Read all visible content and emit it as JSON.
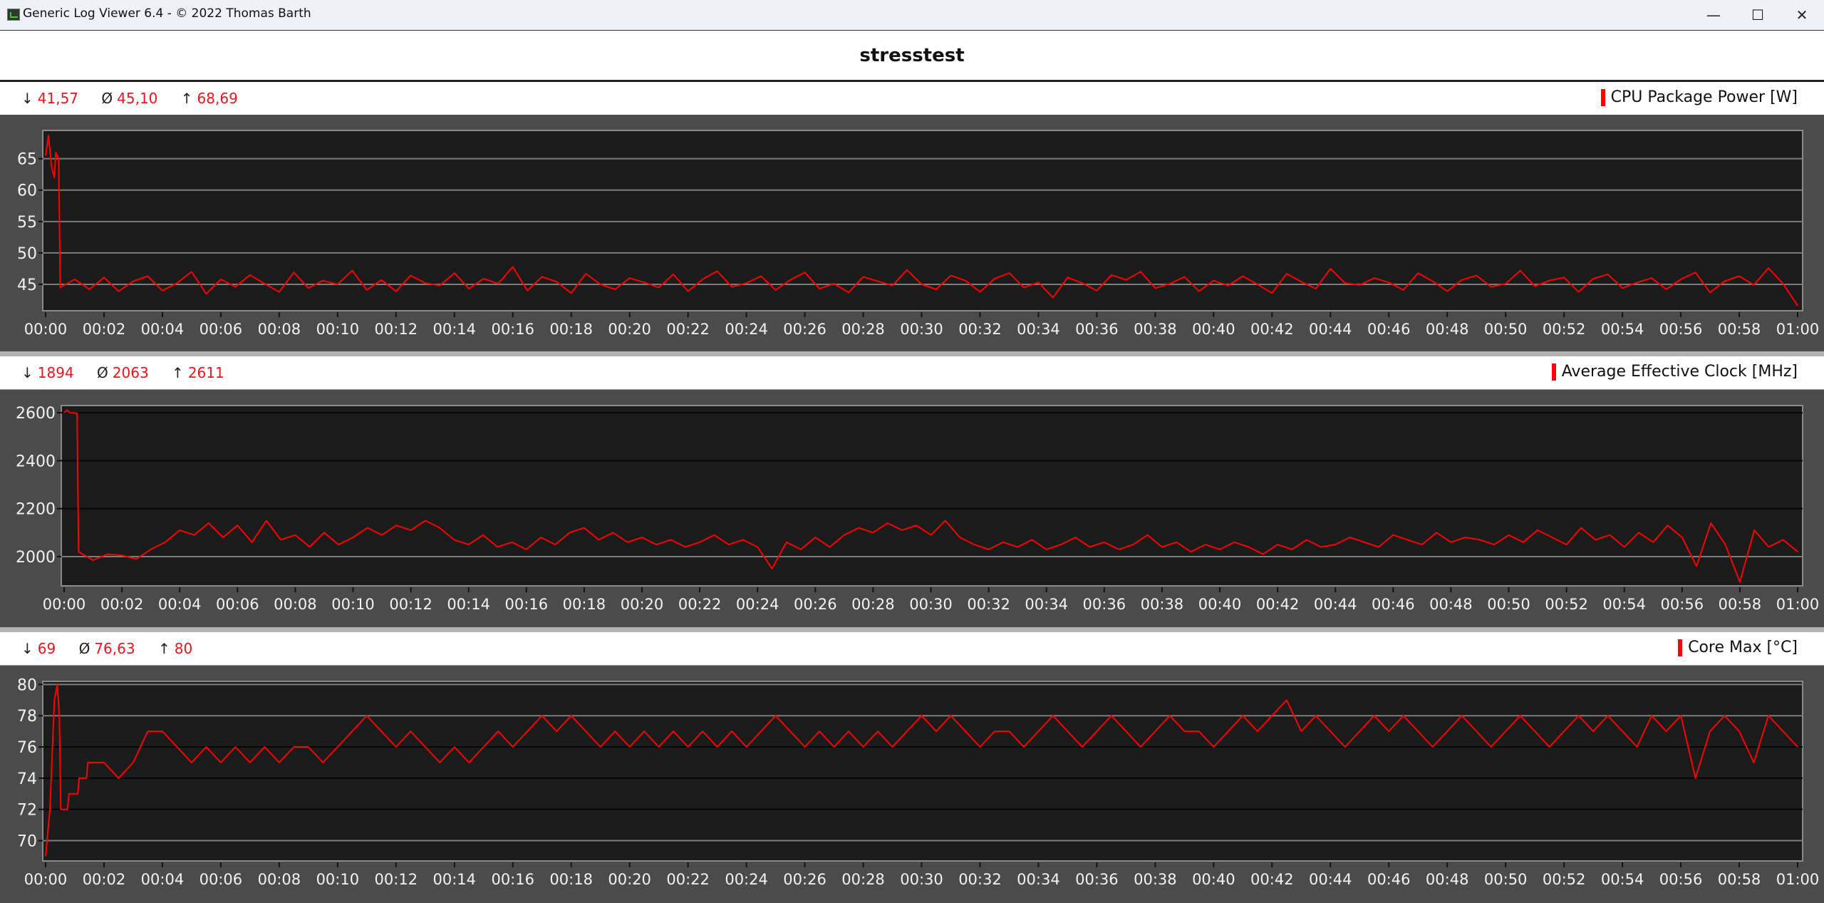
{
  "window": {
    "title": "Generic Log Viewer 6.4 - © 2022 Thomas Barth",
    "minimize_icon": "minimize-icon",
    "maximize_icon": "maximize-icon",
    "close_icon": "close-icon",
    "minimize": "—",
    "maximize": "☐",
    "close": "✕"
  },
  "page_title": "stresstest",
  "stat_symbols": {
    "min": "↓",
    "avg": "Ø",
    "max": "↑"
  },
  "panels": [
    {
      "legend": "CPU Package Power [W]",
      "min": "41,57",
      "avg": "45,10",
      "max": "68,69"
    },
    {
      "legend": "Average Effective Clock [MHz]",
      "min": "1894",
      "avg": "2063",
      "max": "2611"
    },
    {
      "legend": "Core Max [°C]",
      "min": "69",
      "avg": "76,63",
      "max": "80"
    }
  ],
  "chart_data": [
    {
      "type": "line",
      "series_color": "#ff0000",
      "x_tick_labels": [
        "00:00",
        "00:02",
        "00:04",
        "00:06",
        "00:08",
        "00:10",
        "00:12",
        "00:14",
        "00:16",
        "00:18",
        "00:20",
        "00:22",
        "00:24",
        "00:26",
        "00:28",
        "00:30",
        "00:32",
        "00:34",
        "00:36",
        "00:38",
        "00:40",
        "00:42",
        "00:44",
        "00:46",
        "00:48",
        "00:50",
        "00:52",
        "00:54",
        "00:56",
        "00:58",
        "01:00"
      ],
      "xlim": [
        0,
        60
      ],
      "y_ticks": [
        45,
        50,
        55,
        60,
        65
      ],
      "ylim": [
        40.8,
        69.5
      ],
      "grid": true,
      "prefix": [
        [
          0,
          65.5
        ],
        [
          0.1,
          68.7
        ],
        [
          0.2,
          63.8
        ],
        [
          0.3,
          62
        ],
        [
          0.35,
          66
        ],
        [
          0.45,
          65
        ]
      ],
      "x_start": 0.5,
      "x_step": 0.5,
      "values": [
        44.5,
        45.8,
        44.2,
        46.1,
        43.9,
        45.5,
        46.3,
        44.0,
        45.2,
        47.0,
        43.5,
        45.8,
        44.6,
        46.5,
        45.1,
        43.8,
        46.9,
        44.4,
        45.6,
        45.0,
        47.2,
        44.1,
        45.7,
        43.9,
        46.4,
        45.2,
        44.8,
        46.8,
        44.3,
        45.9,
        45.1,
        47.8,
        44.0,
        46.2,
        45.4,
        43.6,
        46.7,
        45.0,
        44.2,
        46.0,
        45.3,
        44.5,
        46.6,
        43.9,
        45.8,
        47.1,
        44.6,
        45.2,
        46.3,
        44.1,
        45.7,
        46.9,
        44.3,
        45.1,
        43.7,
        46.2,
        45.5,
        44.8,
        47.3,
        45.0,
        44.2,
        46.4,
        45.6,
        43.8,
        45.9,
        46.8,
        44.5,
        45.3,
        42.9,
        46.1,
        45.2,
        44.0,
        46.5,
        45.7,
        47.0,
        44.4,
        45.1,
        46.2,
        43.9,
        45.6,
        44.8,
        46.3,
        45.0,
        43.6,
        46.7,
        45.4,
        44.3,
        47.5,
        45.2,
        44.9,
        46.0,
        45.3,
        44.1,
        46.8,
        45.5,
        43.9,
        45.7,
        46.4,
        44.6,
        45.1,
        47.2,
        44.7,
        45.6,
        46.1,
        43.8,
        45.9,
        46.6,
        44.4,
        45.3,
        46.0,
        44.2,
        45.8,
        46.9,
        43.7,
        45.5,
        46.3,
        44.9,
        47.6,
        45.1,
        41.6
      ]
    },
    {
      "type": "line",
      "series_color": "#ff0000",
      "x_tick_labels": [
        "00:00",
        "00:02",
        "00:04",
        "00:06",
        "00:08",
        "00:10",
        "00:12",
        "00:14",
        "00:16",
        "00:18",
        "00:20",
        "00:22",
        "00:24",
        "00:26",
        "00:28",
        "00:30",
        "00:32",
        "00:34",
        "00:36",
        "00:38",
        "00:40",
        "00:42",
        "00:44",
        "00:46",
        "00:48",
        "00:50",
        "00:52",
        "00:54",
        "00:56",
        "00:58",
        "01:00"
      ],
      "xlim": [
        0,
        60
      ],
      "y_ticks": [
        2000,
        2200,
        2400,
        2600
      ],
      "ylim": [
        1878,
        2630
      ],
      "grid": true,
      "prefix": [
        [
          0,
          2600
        ],
        [
          0.1,
          2611
        ],
        [
          0.2,
          2600
        ],
        [
          0.45,
          2598
        ]
      ],
      "x_start": 0.5,
      "x_step": 0.5,
      "values": [
        2020,
        1985,
        2010,
        2005,
        1990,
        2030,
        2060,
        2110,
        2090,
        2140,
        2080,
        2130,
        2060,
        2150,
        2070,
        2090,
        2040,
        2100,
        2050,
        2080,
        2120,
        2090,
        2130,
        2110,
        2150,
        2120,
        2070,
        2050,
        2090,
        2040,
        2060,
        2030,
        2080,
        2050,
        2100,
        2120,
        2070,
        2100,
        2060,
        2080,
        2050,
        2070,
        2040,
        2060,
        2090,
        2050,
        2070,
        2040,
        1950,
        2060,
        2030,
        2080,
        2040,
        2090,
        2120,
        2100,
        2140,
        2110,
        2130,
        2090,
        2150,
        2080,
        2050,
        2030,
        2060,
        2040,
        2070,
        2030,
        2050,
        2080,
        2040,
        2060,
        2030,
        2050,
        2090,
        2040,
        2060,
        2020,
        2050,
        2030,
        2060,
        2040,
        2010,
        2050,
        2030,
        2070,
        2040,
        2050,
        2080,
        2060,
        2040,
        2090,
        2070,
        2050,
        2100,
        2060,
        2080,
        2070,
        2050,
        2090,
        2060,
        2110,
        2080,
        2050,
        2120,
        2070,
        2090,
        2040,
        2100,
        2060,
        2130,
        2080,
        1960,
        2140,
        2050,
        1894,
        2110,
        2040,
        2070,
        2020
      ]
    },
    {
      "type": "line",
      "series_color": "#ff0000",
      "x_tick_labels": [
        "00:00",
        "00:02",
        "00:04",
        "00:06",
        "00:08",
        "00:10",
        "00:12",
        "00:14",
        "00:16",
        "00:18",
        "00:20",
        "00:22",
        "00:24",
        "00:26",
        "00:28",
        "00:30",
        "00:32",
        "00:34",
        "00:36",
        "00:38",
        "00:40",
        "00:42",
        "00:44",
        "00:46",
        "00:48",
        "00:50",
        "00:52",
        "00:54",
        "00:56",
        "00:58",
        "01:00"
      ],
      "xlim": [
        0,
        60
      ],
      "y_ticks": [
        70,
        72,
        74,
        76,
        78,
        80
      ],
      "ylim": [
        68.7,
        80.2
      ],
      "grid": true,
      "prefix": [
        [
          0,
          69
        ],
        [
          0.15,
          72
        ],
        [
          0.3,
          79
        ],
        [
          0.4,
          80
        ],
        [
          0.47,
          78
        ],
        [
          0.52,
          72
        ],
        [
          0.75,
          72
        ],
        [
          0.8,
          73
        ],
        [
          1.1,
          73
        ],
        [
          1.15,
          74
        ],
        [
          1.4,
          74
        ],
        [
          1.45,
          75
        ]
      ],
      "x_start": 2,
      "x_step": 0.5,
      "values": [
        75,
        74,
        75,
        77,
        77,
        76,
        75,
        76,
        75,
        76,
        75,
        76,
        75,
        76,
        76,
        75,
        76,
        77,
        78,
        77,
        76,
        77,
        76,
        75,
        76,
        75,
        76,
        77,
        76,
        77,
        78,
        77,
        78,
        77,
        76,
        77,
        76,
        77,
        76,
        77,
        76,
        77,
        76,
        77,
        76,
        77,
        78,
        77,
        76,
        77,
        76,
        77,
        76,
        77,
        76,
        77,
        78,
        77,
        78,
        77,
        76,
        77,
        77,
        76,
        77,
        78,
        77,
        76,
        77,
        78,
        77,
        76,
        77,
        78,
        77,
        77,
        76,
        77,
        78,
        77,
        78,
        79,
        77,
        78,
        77,
        76,
        77,
        78,
        77,
        78,
        77,
        76,
        77,
        78,
        77,
        76,
        77,
        78,
        77,
        76,
        77,
        78,
        77,
        78,
        77,
        76,
        78,
        77,
        78,
        74,
        77,
        78,
        77,
        75,
        78,
        77,
        76
      ]
    }
  ]
}
